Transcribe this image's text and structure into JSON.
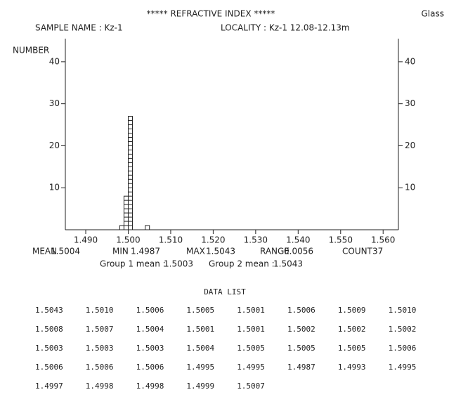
{
  "chart_data": {
    "type": "histogram",
    "title": "*****  REFRACTIVE  INDEX  *****",
    "corner_label": "Glass",
    "sample_name": "SAMPLE NAME : Kz-1",
    "locality": "LOCALITY : Kz-1 12.08-12.13m",
    "y_label": "NUMBER",
    "bins": [
      1.498,
      1.499,
      1.5,
      1.501,
      1.502,
      1.503,
      1.504,
      1.505
    ],
    "counts": [
      1,
      8,
      27,
      0,
      0,
      0,
      1
    ],
    "xlim": [
      1.4852,
      1.5636
    ],
    "xticks": [
      {
        "value": 1.49,
        "label": "1.490"
      },
      {
        "value": 1.5,
        "label": "1.500"
      },
      {
        "value": 1.51,
        "label": "1.510"
      },
      {
        "value": 1.52,
        "label": "1.520"
      },
      {
        "value": 1.53,
        "label": "1.530"
      },
      {
        "value": 1.54,
        "label": "1.540"
      },
      {
        "value": 1.55,
        "label": "1.550"
      },
      {
        "value": 1.56,
        "label": "1.560"
      }
    ],
    "ylim": [
      0,
      45.5
    ],
    "yticks": [
      10,
      20,
      30,
      40
    ],
    "right_axis_ticks": true,
    "color": "#222222"
  },
  "stats": {
    "items": [
      {
        "label": "MEAN",
        "value": "1.5004"
      },
      {
        "label": "MIN",
        "value": "1.4987"
      },
      {
        "label": "MAX",
        "value": "1.5043"
      },
      {
        "label": "RANGE",
        "value": "0.0056"
      },
      {
        "label": "COUNT",
        "value": "37"
      }
    ],
    "groups": [
      {
        "label": "Group 1 mean :",
        "value": "1.5003"
      },
      {
        "label": "Group 2 mean :",
        "value": "1.5043"
      }
    ]
  },
  "data_list": {
    "title": "DATA  LIST",
    "values": [
      "1.5043",
      "1.5010",
      "1.5006",
      "1.5005",
      "1.5001",
      "1.5006",
      "1.5009",
      "1.5010",
      "1.5008",
      "1.5007",
      "1.5004",
      "1.5001",
      "1.5001",
      "1.5002",
      "1.5002",
      "1.5002",
      "1.5003",
      "1.5003",
      "1.5003",
      "1.5004",
      "1.5005",
      "1.5005",
      "1.5005",
      "1.5006",
      "1.5006",
      "1.5006",
      "1.5006",
      "1.4995",
      "1.4995",
      "1.4987",
      "1.4993",
      "1.4995",
      "1.4997",
      "1.4998",
      "1.4998",
      "1.4999",
      "1.5007"
    ]
  }
}
